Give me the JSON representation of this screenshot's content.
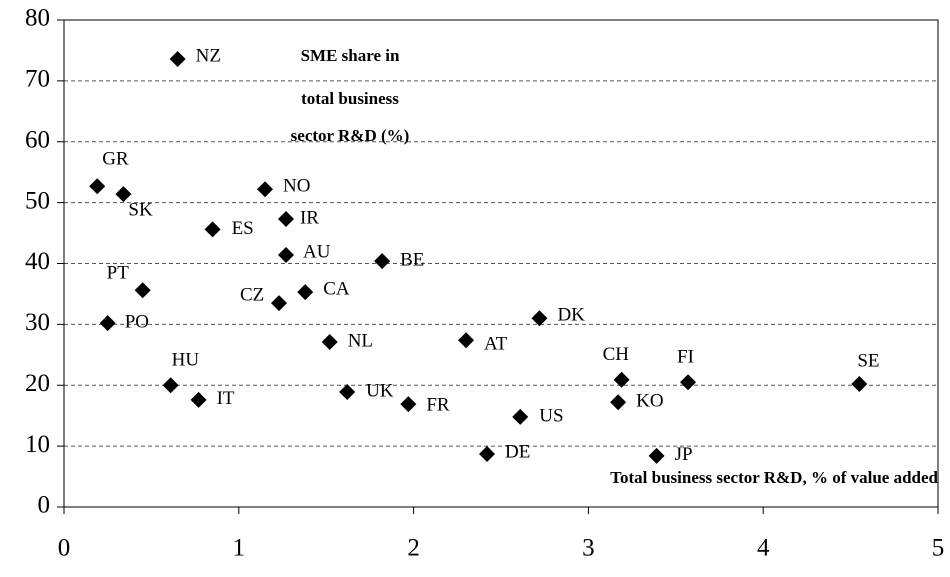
{
  "chart_data": {
    "type": "scatter",
    "ylabel": [
      "SME share in",
      "total business",
      "sector R&D (%)"
    ],
    "xlabel": "Total business sector R&D, % of value added",
    "labels": [
      "NZ",
      "GR",
      "SK",
      "NO",
      "IR",
      "ES",
      "AU",
      "BE",
      "PT",
      "CA",
      "CZ",
      "PO",
      "DK",
      "NL",
      "AT",
      "HU",
      "CH",
      "FI",
      "SE",
      "UK",
      "IT",
      "FR",
      "KO",
      "US",
      "DE",
      "JP"
    ],
    "x": [
      0.65,
      0.19,
      0.34,
      1.15,
      1.27,
      0.85,
      1.27,
      1.82,
      0.45,
      1.38,
      1.23,
      0.25,
      2.72,
      1.52,
      2.3,
      0.61,
      3.19,
      3.57,
      4.55,
      1.62,
      0.77,
      1.97,
      3.17,
      2.61,
      2.42,
      3.39
    ],
    "y": [
      73.6,
      52.7,
      51.4,
      52.2,
      47.3,
      45.6,
      41.4,
      40.4,
      35.6,
      35.3,
      33.5,
      30.2,
      31.0,
      27.1,
      27.4,
      20.0,
      20.9,
      20.5,
      20.2,
      18.9,
      17.6,
      16.9,
      17.2,
      14.8,
      8.7,
      8.4
    ],
    "color": "#000000",
    "xlim": [
      0,
      5
    ],
    "ylim": [
      0,
      80
    ],
    "xticks": [
      0,
      1,
      2,
      3,
      4,
      5
    ],
    "yticks": [
      0,
      10,
      20,
      30,
      40,
      50,
      60,
      70,
      80
    ],
    "grid": true
  }
}
